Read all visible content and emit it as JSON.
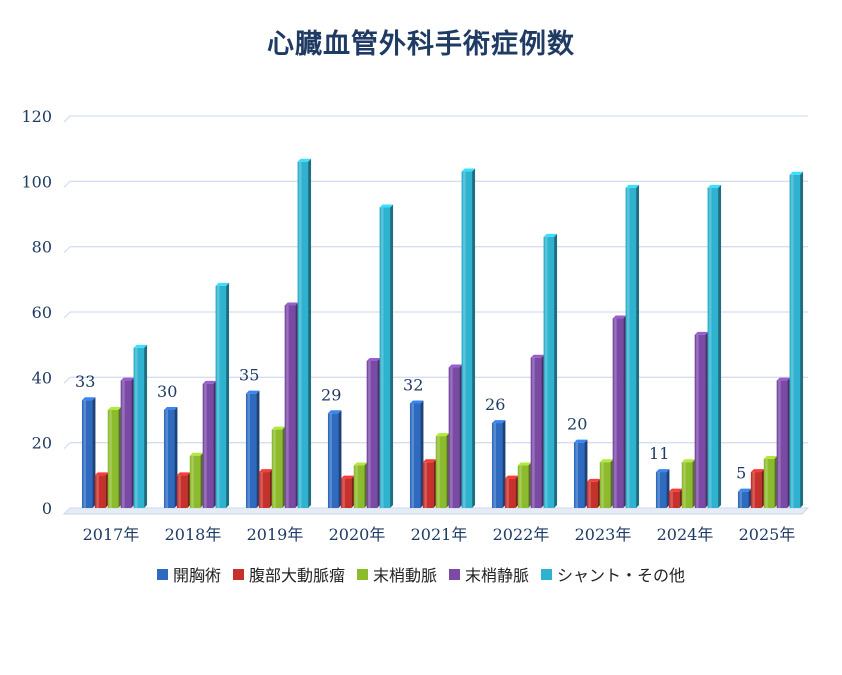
{
  "chart_data": {
    "type": "bar",
    "title": "心臓血管外科手術症例数",
    "categories": [
      "2017年",
      "2018年",
      "2019年",
      "2020年",
      "2021年",
      "2022年",
      "2023年",
      "2024年",
      "2025年"
    ],
    "ylim": [
      0,
      120
    ],
    "yticks": [
      0,
      20,
      40,
      60,
      80,
      100,
      120
    ],
    "grid": true,
    "legend_position": "bottom",
    "series": [
      {
        "name": "開胸術",
        "color": "#2e6bc0",
        "values": [
          33,
          30,
          35,
          29,
          32,
          26,
          20,
          11,
          5
        ],
        "data_labels": [
          "33",
          "30",
          "35",
          "29",
          "32",
          "26",
          "20",
          "11",
          "5"
        ]
      },
      {
        "name": "腹部大動脈瘤",
        "color": "#c8302b",
        "values": [
          10,
          10,
          11,
          9,
          14,
          9,
          8,
          5,
          11
        ]
      },
      {
        "name": "末梢動脈",
        "color": "#8dbb2e",
        "values": [
          30,
          16,
          24,
          13,
          22,
          13,
          14,
          14,
          15
        ]
      },
      {
        "name": "末梢静脈",
        "color": "#7a4aa6",
        "values": [
          39,
          38,
          62,
          45,
          43,
          46,
          58,
          53,
          39
        ]
      },
      {
        "name": "シャント・その他",
        "color": "#2fb2cf",
        "values": [
          49,
          68,
          106,
          92,
          103,
          83,
          98,
          98,
          102
        ]
      }
    ]
  }
}
